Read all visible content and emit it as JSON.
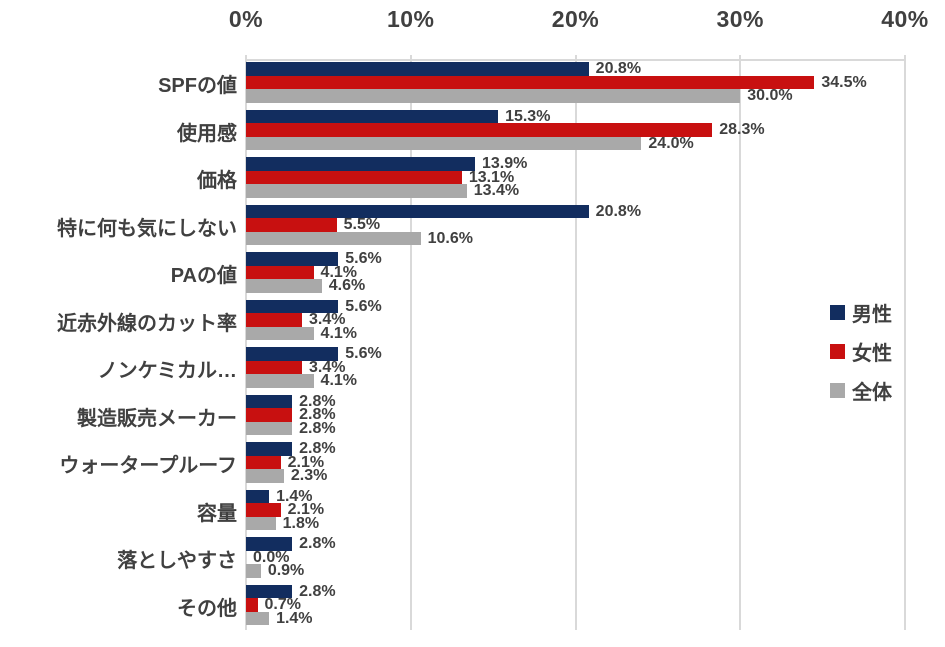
{
  "chart_data": {
    "type": "bar",
    "orientation": "horizontal",
    "title": "",
    "categories": [
      "SPFの値",
      "使用感",
      "価格",
      "特に何も気にしない",
      "PAの値",
      "近赤外線のカット率",
      "ノンケミカル…",
      "製造販売メーカー",
      "ウォータープルーフ",
      "容量",
      "落としやすさ",
      "その他"
    ],
    "series": [
      {
        "name": "男性",
        "color": "#122d5f",
        "values": [
          20.8,
          15.3,
          13.9,
          20.8,
          5.6,
          5.6,
          5.6,
          2.8,
          2.8,
          1.4,
          2.8,
          2.8
        ],
        "labels": [
          "20.8%",
          "15.3%",
          "13.9%",
          "20.8%",
          "5.6%",
          "5.6%",
          "5.6%",
          "2.8%",
          "2.8%",
          "1.4%",
          "2.8%",
          "2.8%"
        ]
      },
      {
        "name": "女性",
        "color": "#c81010",
        "values": [
          34.5,
          28.3,
          13.1,
          5.5,
          4.1,
          3.4,
          3.4,
          2.8,
          2.1,
          2.1,
          0.0,
          0.7
        ],
        "labels": [
          "34.5%",
          "28.3%",
          "13.1%",
          "5.5%",
          "4.1%",
          "3.4%",
          "3.4%",
          "2.8%",
          "2.1%",
          "2.1%",
          "0.0%",
          "0.7%"
        ]
      },
      {
        "name": "全体",
        "color": "#a9a9a9",
        "values": [
          30.0,
          24.0,
          13.4,
          10.6,
          4.6,
          4.1,
          4.1,
          2.8,
          2.3,
          1.8,
          0.9,
          1.4
        ],
        "labels": [
          "30.0%",
          "24.0%",
          "13.4%",
          "10.6%",
          "4.6%",
          "4.1%",
          "4.1%",
          "2.8%",
          "2.3%",
          "1.8%",
          "0.9%",
          "1.4%"
        ]
      }
    ],
    "x_axis": {
      "ticks": [
        "0%",
        "10%",
        "20%",
        "30%",
        "40%"
      ],
      "min": 0,
      "max": 40,
      "position": "top"
    },
    "legend": {
      "entries": [
        "男性",
        "女性",
        "全体"
      ],
      "position": "right-middle"
    },
    "grid": true
  },
  "colors": {
    "male_bar": "#122d5f",
    "female_bar": "#c81010",
    "overall_bar": "#a9a9a9",
    "gridline": "#d9d9d9",
    "text": "#404040",
    "background": "#ffffff"
  }
}
